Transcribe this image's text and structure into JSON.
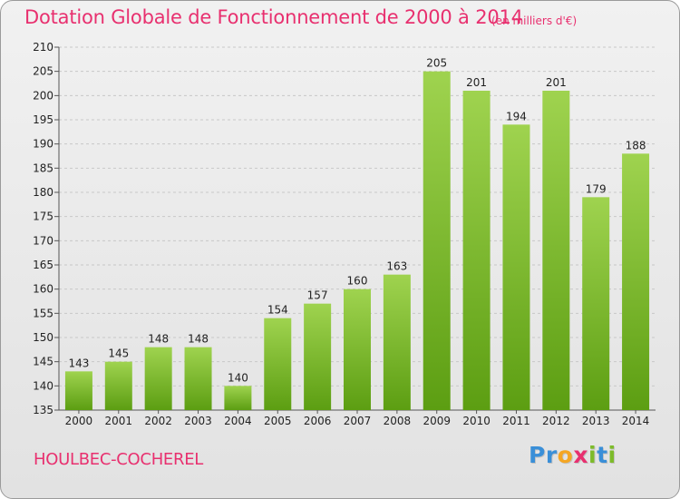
{
  "chart_data": {
    "type": "bar",
    "title": "Dotation Globale de Fonctionnement de 2000 à 2014",
    "subtitle": "(en milliers d'€)",
    "categories": [
      "2000",
      "2001",
      "2002",
      "2003",
      "2004",
      "2005",
      "2006",
      "2007",
      "2008",
      "2009",
      "2010",
      "2011",
      "2012",
      "2013",
      "2014"
    ],
    "values": [
      143,
      145,
      148,
      148,
      140,
      154,
      157,
      160,
      163,
      205,
      201,
      194,
      201,
      179,
      188
    ],
    "ylim": [
      135,
      210
    ],
    "yticks": [
      135,
      140,
      145,
      150,
      155,
      160,
      165,
      170,
      175,
      180,
      185,
      190,
      195,
      200,
      205,
      210
    ],
    "grid": true,
    "colors": {
      "bar_light": "#9fd34f",
      "bar_dark": "#5c9e12",
      "title": "#e8306f"
    }
  },
  "footer": {
    "commune": "HOULBEC-COCHEREL"
  },
  "logo": {
    "letters": [
      "P",
      "r",
      "o",
      "x",
      "i",
      "t",
      "i"
    ],
    "colors": [
      "#3a8fd8",
      "#3a8fd8",
      "#f5a623",
      "#e8306f",
      "#7dbb2a",
      "#3a8fd8",
      "#7dbb2a"
    ]
  }
}
